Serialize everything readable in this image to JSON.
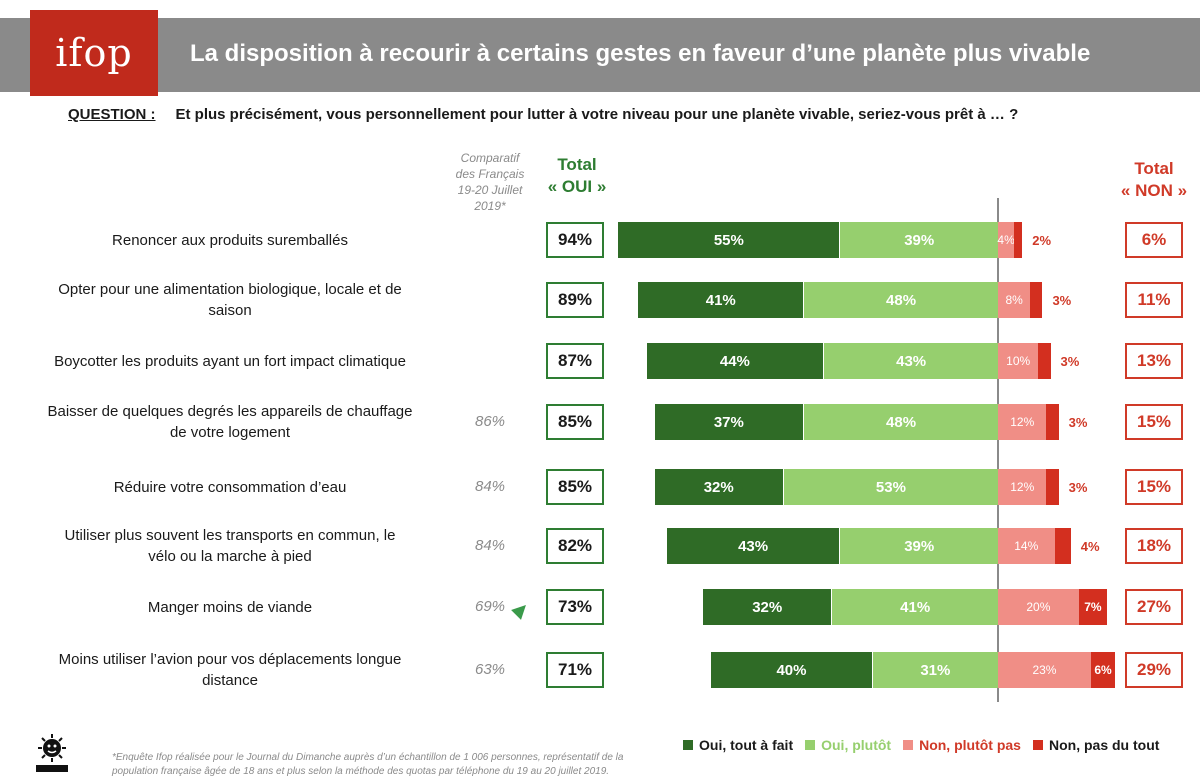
{
  "header": {
    "logo": "ifop",
    "title": "La disposition à recourir à certains gestes en faveur d’une planète plus vivable"
  },
  "question": {
    "label": "QUESTION :",
    "text": "Et plus précisément, vous personnellement pour lutter à votre niveau pour une planète vivable, seriez-vous prêt à … ?"
  },
  "column_headers": {
    "comparatif": [
      "Comparatif",
      "des Français",
      "19-20 Juillet",
      "2019*"
    ],
    "total_oui": [
      "Total",
      "« OUI »"
    ],
    "total_non": [
      "Total",
      "« NON »"
    ]
  },
  "chart_data": {
    "type": "bar",
    "orientation": "horizontal-stacked-diverging",
    "title": "La disposition à recourir à certains gestes en faveur d’une planète plus vivable",
    "categories": [
      "Renoncer aux produits suremballés",
      "Opter pour une alimentation biologique, locale et de saison",
      "Boycotter les produits ayant un fort impact climatique",
      "Baisser de quelques degrés les appareils de chauffage de votre logement",
      "Réduire votre consommation d’eau",
      "Utiliser plus souvent les transports en commun, le vélo ou la marche à pied",
      "Manger moins de viande",
      "Moins utiliser l’avion pour vos déplacements longue distance"
    ],
    "series": [
      {
        "name": "Oui, tout à fait",
        "color": "#2f6b26",
        "values": [
          55,
          41,
          44,
          37,
          32,
          43,
          32,
          40
        ]
      },
      {
        "name": "Oui, plutôt",
        "color": "#96cf6e",
        "values": [
          39,
          48,
          43,
          48,
          53,
          39,
          41,
          31
        ]
      },
      {
        "name": "Non, plutôt pas",
        "color": "#f08e86",
        "values": [
          4,
          8,
          10,
          12,
          12,
          14,
          20,
          23
        ]
      },
      {
        "name": "Non, pas du tout",
        "color": "#d32f1f",
        "values": [
          2,
          3,
          3,
          3,
          3,
          4,
          7,
          6
        ]
      }
    ],
    "total_oui": [
      94,
      89,
      87,
      85,
      85,
      82,
      73,
      71
    ],
    "total_non": [
      6,
      11,
      13,
      15,
      15,
      18,
      27,
      29
    ],
    "comparatif_2019": [
      null,
      null,
      null,
      86,
      84,
      84,
      69,
      63
    ],
    "highlight_arrow_rows": [
      6
    ],
    "unit": "%",
    "legend_position": "bottom-right"
  },
  "legend": {
    "items": [
      {
        "label": "Oui, tout à fait",
        "color": "#2f6b26"
      },
      {
        "label": "Oui, plutôt",
        "color": "#96cf6e"
      },
      {
        "label": "Non, plutôt pas",
        "color": "#f08e86"
      },
      {
        "label": "Non, pas du tout",
        "color": "#d32f1f"
      }
    ]
  },
  "footnote": "*Enquête Ifop réalisée pour le Journal du Dimanche auprès d’un échantillon de 1 006 personnes, représentatif de la population française âgée de 18 ans et plus selon la méthode des quotas par téléphone du 19 au 20 juillet 2019."
}
